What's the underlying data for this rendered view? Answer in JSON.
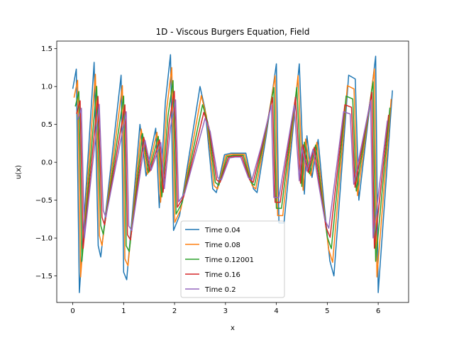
{
  "chart_data": {
    "type": "line",
    "title": "1D - Viscous Burgers Equation, Field",
    "xlabel": "x",
    "ylabel": "u(x)",
    "xlim": [
      -0.3142,
      6.5973
    ],
    "ylim": [
      -1.85,
      1.6
    ],
    "xticks": [
      0,
      1,
      2,
      3,
      4,
      5,
      6
    ],
    "yticks": [
      -1.5,
      -1.0,
      -0.5,
      0.0,
      0.5,
      1.0,
      1.5
    ],
    "ytick_labels": [
      "−1.5",
      "−1.0",
      "−0.5",
      "0.0",
      "0.5",
      "1.0",
      "1.5"
    ],
    "grid": false,
    "legend_position": "lower center",
    "series": [
      {
        "name": "Time 0.04",
        "color": "#1f77b4",
        "scale": 1.0,
        "shift": 0.0,
        "points": [
          [
            0.0,
            0.97
          ],
          [
            0.07,
            1.23
          ],
          [
            0.13,
            -1.72
          ],
          [
            0.42,
            1.32
          ],
          [
            0.5,
            -1.1
          ],
          [
            0.55,
            -1.25
          ],
          [
            0.95,
            1.15
          ],
          [
            1.0,
            -1.45
          ],
          [
            1.06,
            -1.55
          ],
          [
            1.32,
            0.5
          ],
          [
            1.44,
            -0.18
          ],
          [
            1.63,
            0.45
          ],
          [
            1.7,
            -0.6
          ],
          [
            1.82,
            0.8
          ],
          [
            1.92,
            1.42
          ],
          [
            1.98,
            -0.9
          ],
          [
            2.1,
            -0.7
          ],
          [
            2.5,
            1.0
          ],
          [
            2.6,
            0.7
          ],
          [
            2.75,
            -0.35
          ],
          [
            2.82,
            -0.4
          ],
          [
            2.98,
            0.1
          ],
          [
            3.1,
            0.12
          ],
          [
            3.4,
            0.12
          ],
          [
            3.55,
            -0.35
          ],
          [
            3.62,
            -0.4
          ],
          [
            3.8,
            0.35
          ],
          [
            4.0,
            1.3
          ],
          [
            4.05,
            -0.8
          ],
          [
            4.15,
            -0.8
          ],
          [
            4.45,
            1.3
          ],
          [
            4.55,
            -0.42
          ],
          [
            4.6,
            0.35
          ],
          [
            4.7,
            -0.2
          ],
          [
            4.82,
            0.3
          ],
          [
            4.93,
            -0.5
          ],
          [
            5.05,
            -1.3
          ],
          [
            5.13,
            -1.5
          ],
          [
            5.42,
            1.15
          ],
          [
            5.55,
            1.1
          ],
          [
            5.62,
            -0.5
          ],
          [
            5.95,
            1.4
          ],
          [
            6.0,
            -1.72
          ],
          [
            6.28,
            0.95
          ]
        ]
      },
      {
        "name": "Time 0.08",
        "color": "#ff7f0e",
        "scale": 0.88,
        "shift": 0.025,
        "points": []
      },
      {
        "name": "Time 0.12001",
        "color": "#2ca02c",
        "scale": 0.76,
        "shift": 0.05,
        "points": []
      },
      {
        "name": "Time 0.16",
        "color": "#d62728",
        "scale": 0.66,
        "shift": 0.075,
        "points": []
      },
      {
        "name": "Time 0.2",
        "color": "#9467bd",
        "scale": 0.58,
        "shift": 0.1,
        "points": []
      }
    ]
  }
}
